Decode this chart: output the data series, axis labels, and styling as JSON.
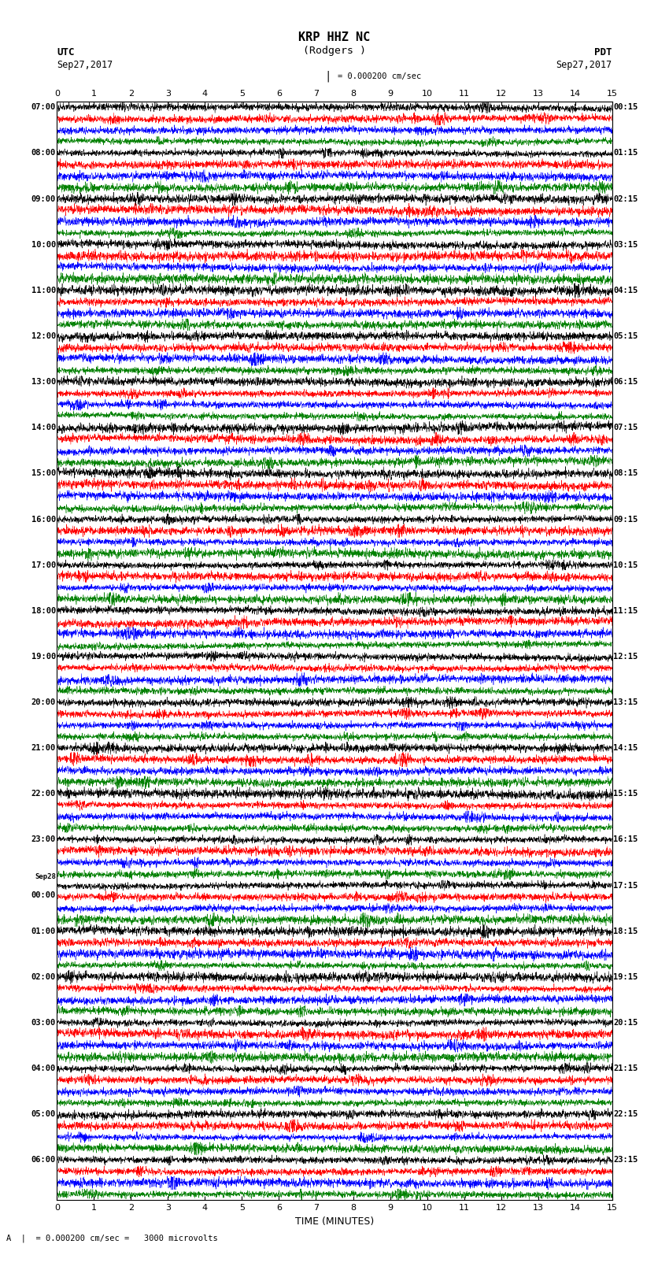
{
  "title_line1": "KRP HHZ NC",
  "title_line2": "(Rodgers )",
  "scale_label": "= 0.000200 cm/sec",
  "bottom_label": "= 0.000200 cm/sec =   3000 microvolts",
  "xlabel": "TIME (MINUTES)",
  "left_header": "UTC",
  "left_date": "Sep27,2017",
  "right_header": "PDT",
  "right_date": "Sep27,2017",
  "utc_times": [
    "07:00",
    "08:00",
    "09:00",
    "10:00",
    "11:00",
    "12:00",
    "13:00",
    "14:00",
    "15:00",
    "16:00",
    "17:00",
    "18:00",
    "19:00",
    "20:00",
    "21:00",
    "22:00",
    "23:00",
    "Sep28\n00:00",
    "01:00",
    "02:00",
    "03:00",
    "04:00",
    "05:00",
    "06:00"
  ],
  "pdt_times": [
    "00:15",
    "01:15",
    "02:15",
    "03:15",
    "04:15",
    "05:15",
    "06:15",
    "07:15",
    "08:15",
    "09:15",
    "10:15",
    "11:15",
    "12:15",
    "13:15",
    "14:15",
    "15:15",
    "16:15",
    "17:15",
    "18:15",
    "19:15",
    "20:15",
    "21:15",
    "22:15",
    "23:15"
  ],
  "n_rows": 24,
  "traces_per_row": 4,
  "trace_colors": [
    "black",
    "red",
    "blue",
    "green"
  ],
  "xmin": 0,
  "xmax": 15,
  "xticks": [
    0,
    1,
    2,
    3,
    4,
    5,
    6,
    7,
    8,
    9,
    10,
    11,
    12,
    13,
    14,
    15
  ],
  "background_color": "white",
  "fig_width": 8.5,
  "fig_height": 16.13,
  "dpi": 100,
  "seed": 42,
  "amplitude_scale": 0.45,
  "n_points": 3000
}
